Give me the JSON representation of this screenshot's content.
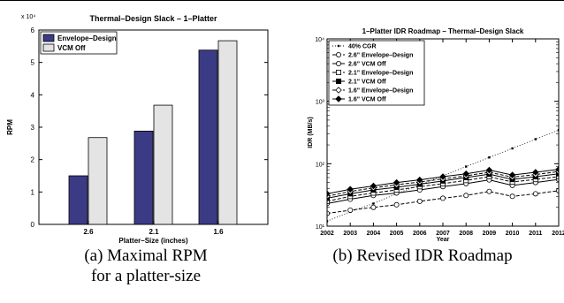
{
  "chart_data": [
    {
      "type": "bar",
      "title": "Thermal–Design Slack – 1–Platter",
      "xlabel": "Platter–Size (inches)",
      "ylabel": "RPM",
      "exponent_label": "x 10⁴",
      "categories": [
        "2.6",
        "2.1",
        "1.6"
      ],
      "ylim": [
        0,
        60000
      ],
      "yticks": [
        0,
        1,
        2,
        3,
        4,
        5,
        6
      ],
      "legend_position": "top-left",
      "series": [
        {
          "name": "Envelope–Design",
          "color": "#3b3b85",
          "values": [
            15000,
            28800,
            53800
          ]
        },
        {
          "name": "VCM Off",
          "color": "#e4e4e4",
          "values": [
            26800,
            36800,
            56700
          ]
        }
      ]
    },
    {
      "type": "line",
      "title": "1–Platter IDR Roadmap – Thermal–Design Slack",
      "xlabel": "Year",
      "ylabel": "IDR (MB/s)",
      "yscale": "log",
      "ylim": [
        10,
        10000
      ],
      "ytick_labels": [
        "10¹",
        "10²",
        "10³",
        "10⁴"
      ],
      "x": [
        2002,
        2003,
        2004,
        2005,
        2006,
        2007,
        2008,
        2009,
        2010,
        2011,
        2012
      ],
      "legend_position": "top-left",
      "series": [
        {
          "name": "40% CGR",
          "marker": "dot",
          "dash": "dotted",
          "values": [
            12,
            17,
            23,
            33,
            46,
            64,
            90,
            126,
            176,
            247,
            346
          ]
        },
        {
          "name": "2.6\" Envelope–Design",
          "marker": "circle",
          "dash": "dashed",
          "values": [
            16,
            18,
            20,
            22,
            25,
            28,
            31,
            36,
            30,
            33,
            37
          ]
        },
        {
          "name": "2.6\" VCM Off",
          "marker": "circle",
          "dash": "solid",
          "values": [
            23,
            27,
            31,
            34,
            38,
            43,
            48,
            55,
            45,
            50,
            56
          ]
        },
        {
          "name": "2.1\" Envelope–Design",
          "marker": "square",
          "dash": "dashed",
          "values": [
            25,
            30,
            34,
            38,
            43,
            48,
            54,
            62,
            51,
            56,
            62
          ]
        },
        {
          "name": "2.1\" VCM Off",
          "marker": "square-filled",
          "dash": "solid",
          "values": [
            28,
            33,
            38,
            42,
            47,
            53,
            60,
            68,
            56,
            62,
            69
          ]
        },
        {
          "name": "1.6\" Envelope–Design",
          "marker": "diamond",
          "dash": "dashed",
          "values": [
            30,
            36,
            41,
            46,
            51,
            57,
            64,
            73,
            61,
            67,
            75
          ]
        },
        {
          "name": "1.6\" VCM Off",
          "marker": "diamond-filled",
          "dash": "solid",
          "values": [
            33,
            39,
            44,
            50,
            55,
            62,
            69,
            79,
            66,
            73,
            81
          ]
        }
      ]
    }
  ],
  "captions": {
    "a": [
      "(a) Maximal RPM",
      "for a platter-size"
    ],
    "b": [
      "(b) Revised IDR Roadmap"
    ]
  }
}
